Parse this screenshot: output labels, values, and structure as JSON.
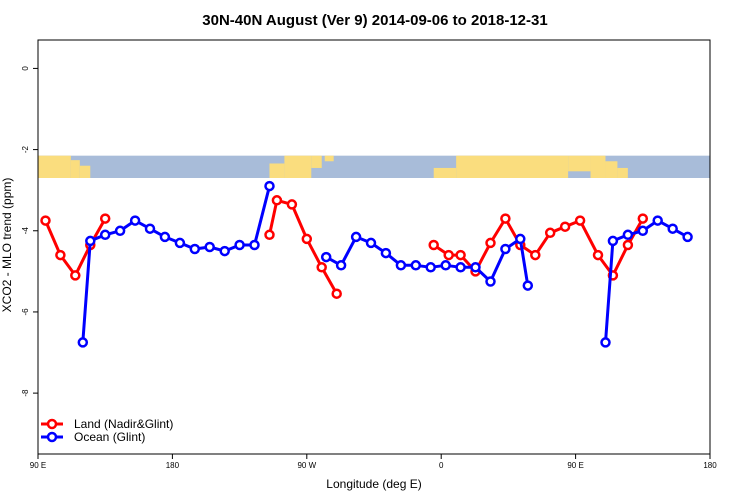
{
  "chart_data": {
    "type": "line",
    "title": "30N-40N August (Ver 9)   2014-09-06 to 2018-12-31",
    "xlabel": "Longitude (deg E)",
    "ylabel": "XCO2 - MLO trend (ppm)",
    "xlim": [
      90,
      540
    ],
    "ylim": [
      -9.5,
      0.7
    ],
    "xticks": [
      {
        "value": 90,
        "label": "90 E"
      },
      {
        "value": 180,
        "label": "180"
      },
      {
        "value": 270,
        "label": "90 W"
      },
      {
        "value": 360,
        "label": "0"
      },
      {
        "value": 450,
        "label": "90 E"
      },
      {
        "value": 540,
        "label": "180"
      }
    ],
    "yticks": [
      {
        "value": 0,
        "label": "0"
      },
      {
        "value": -2,
        "label": "-2"
      },
      {
        "value": -4,
        "label": "-4"
      },
      {
        "value": -6,
        "label": "-6"
      },
      {
        "value": -8,
        "label": "-8"
      }
    ],
    "map_strip": {
      "y_top": -2.15,
      "y_bottom": -2.7,
      "ocean_color": "#a8bcd9",
      "land_color": "#fadd7e"
    },
    "series": [
      {
        "name": "Land (Nadir&Glint)",
        "color": "#ff0000",
        "segments": [
          [
            [
              95,
              -3.75
            ],
            [
              105,
              -4.6
            ],
            [
              115,
              -5.1
            ],
            [
              125,
              -4.35
            ],
            [
              135,
              -3.7
            ]
          ],
          [
            [
              245,
              -4.1
            ],
            [
              250,
              -3.25
            ],
            [
              260,
              -3.35
            ],
            [
              270,
              -4.2
            ],
            [
              280,
              -4.9
            ],
            [
              290,
              -5.55
            ]
          ],
          [
            [
              355,
              -4.35
            ],
            [
              365,
              -4.6
            ],
            [
              373,
              -4.6
            ],
            [
              383,
              -5.0
            ],
            [
              393,
              -4.3
            ],
            [
              403,
              -3.7
            ],
            [
              413,
              -4.35
            ],
            [
              423,
              -4.6
            ],
            [
              433,
              -4.05
            ],
            [
              443,
              -3.9
            ],
            [
              453,
              -3.75
            ],
            [
              465,
              -4.6
            ],
            [
              475,
              -5.1
            ],
            [
              485,
              -4.35
            ],
            [
              495,
              -3.7
            ]
          ]
        ]
      },
      {
        "name": "Ocean (Glint)",
        "color": "#0000ff",
        "segments": [
          [
            [
              120,
              -6.75
            ],
            [
              125,
              -4.25
            ],
            [
              135,
              -4.1
            ],
            [
              145,
              -4.0
            ],
            [
              155,
              -3.75
            ],
            [
              165,
              -3.95
            ],
            [
              175,
              -4.15
            ],
            [
              185,
              -4.3
            ],
            [
              195,
              -4.45
            ],
            [
              205,
              -4.4
            ],
            [
              215,
              -4.5
            ],
            [
              225,
              -4.35
            ],
            [
              235,
              -4.35
            ],
            [
              245,
              -2.9
            ]
          ],
          [
            [
              283,
              -4.65
            ],
            [
              293,
              -4.85
            ],
            [
              303,
              -4.15
            ],
            [
              313,
              -4.3
            ],
            [
              323,
              -4.55
            ],
            [
              333,
              -4.85
            ],
            [
              343,
              -4.85
            ],
            [
              353,
              -4.9
            ],
            [
              363,
              -4.85
            ],
            [
              373,
              -4.9
            ],
            [
              383,
              -4.9
            ],
            [
              393,
              -5.25
            ],
            [
              403,
              -4.45
            ],
            [
              413,
              -4.2
            ],
            [
              418,
              -5.35
            ]
          ]
        ],
        "segments_extra": [
          [
            [
              470,
              -6.75
            ],
            [
              475,
              -4.25
            ],
            [
              485,
              -4.1
            ],
            [
              495,
              -4.0
            ],
            [
              505,
              -3.75
            ],
            [
              515,
              -3.95
            ],
            [
              525,
              -4.15
            ]
          ]
        ]
      }
    ],
    "legend": {
      "position": "bottom-left",
      "entries": [
        "Land (Nadir&Glint)",
        "Ocean (Glint)"
      ]
    }
  }
}
